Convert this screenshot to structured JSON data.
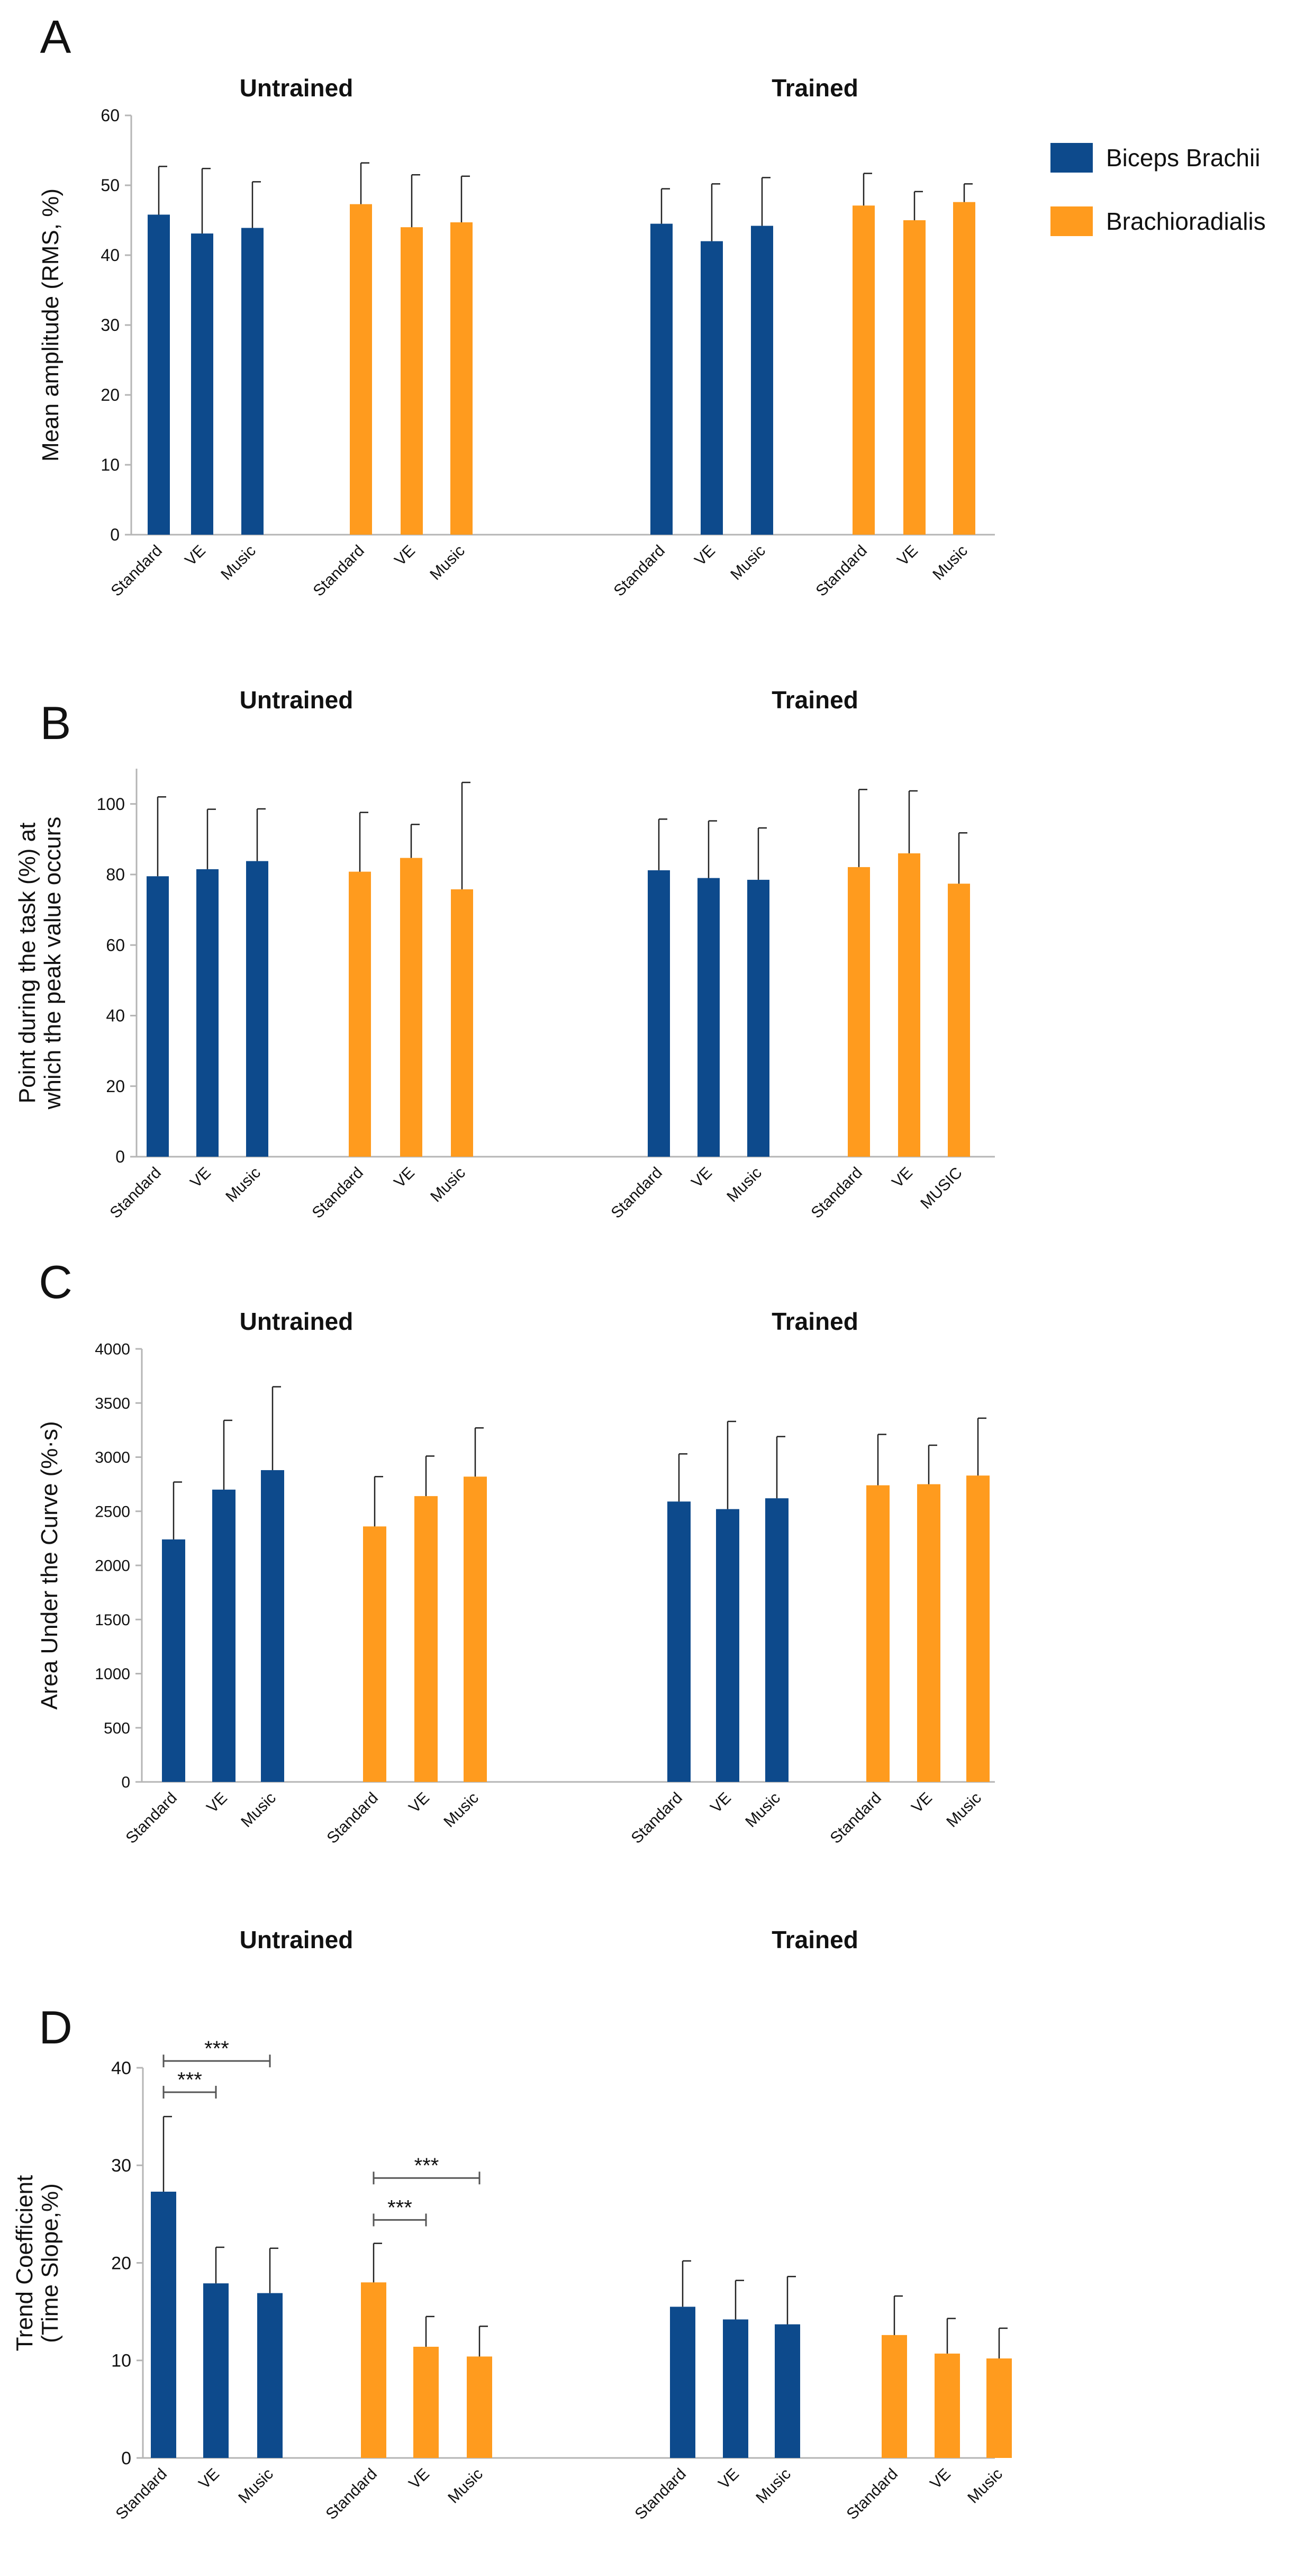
{
  "legend": {
    "items": [
      {
        "name": "Biceps Brachii",
        "color": "#0d4a8c"
      },
      {
        "name": "Brachioradialis",
        "color": "#ff9b1e"
      }
    ]
  },
  "chart_data": [
    {
      "panel": "A",
      "type": "bar",
      "ylabel": "Mean amplitude (RMS, %)",
      "ylim": [
        0,
        60
      ],
      "yticks": [
        0,
        10,
        20,
        30,
        40,
        50,
        60
      ],
      "groups": [
        {
          "title": "Untrained",
          "biceps": {
            "categories": [
              "Standard",
              "VE",
              "Music"
            ],
            "values": [
              45.8,
              43.1,
              43.9
            ],
            "errors": [
              6.9,
              9.3,
              6.6
            ]
          },
          "brachio": {
            "categories": [
              "Standard",
              "VE",
              "Music"
            ],
            "values": [
              47.3,
              44.0,
              44.7
            ],
            "errors": [
              5.9,
              7.5,
              6.6
            ]
          }
        },
        {
          "title": "Trained",
          "biceps": {
            "categories": [
              "Standard",
              "VE",
              "Music"
            ],
            "values": [
              44.5,
              42.0,
              44.2
            ],
            "errors": [
              5.0,
              8.2,
              6.9
            ]
          },
          "brachio": {
            "categories": [
              "Standard",
              "VE",
              "Music"
            ],
            "values": [
              47.1,
              45.0,
              47.6
            ],
            "errors": [
              4.6,
              4.1,
              2.6
            ]
          }
        }
      ],
      "significance": []
    },
    {
      "panel": "B",
      "type": "bar",
      "ylabel": "Point during the task (%) at which the peak value occurs",
      "ylabel_lines": [
        "Point during the task (%) at",
        "which the peak value occurs"
      ],
      "ylim": [
        0,
        110
      ],
      "yticks": [
        0,
        20,
        40,
        60,
        80,
        100
      ],
      "groups": [
        {
          "title": "Untrained",
          "biceps": {
            "categories": [
              "Standard",
              "VE",
              "Music"
            ],
            "values": [
              79.5,
              81.5,
              83.8
            ],
            "errors": [
              22.5,
              17.0,
              14.8
            ]
          },
          "brachio": {
            "categories": [
              "Standard",
              "VE",
              "Music"
            ],
            "values": [
              80.8,
              84.7,
              75.8
            ],
            "errors": [
              16.8,
              9.5,
              30.3
            ]
          }
        },
        {
          "title": "Trained",
          "biceps": {
            "categories": [
              "Standard",
              "VE",
              "Music"
            ],
            "values": [
              81.2,
              79.0,
              78.5
            ],
            "errors": [
              14.5,
              16.2,
              14.7
            ]
          },
          "brachio": {
            "categories": [
              "Standard",
              "VE",
              "MUSIC"
            ],
            "values": [
              82.1,
              86.0,
              77.4
            ],
            "errors": [
              22.0,
              17.7,
              14.4
            ]
          }
        }
      ],
      "significance": []
    },
    {
      "panel": "C",
      "type": "bar",
      "ylabel": "Area Under the Curve (%·s)",
      "ylim": [
        0,
        4000
      ],
      "yticks": [
        0,
        500,
        1000,
        1500,
        2000,
        2500,
        3000,
        3500,
        4000
      ],
      "groups": [
        {
          "title": "Untrained",
          "biceps": {
            "categories": [
              "Standard",
              "VE",
              "Music"
            ],
            "values": [
              2240,
              2700,
              2880
            ],
            "errors": [
              530,
              640,
              770
            ]
          },
          "brachio": {
            "categories": [
              "Standard",
              "VE",
              "Music"
            ],
            "values": [
              2360,
              2640,
              2820
            ],
            "errors": [
              460,
              370,
              450
            ]
          }
        },
        {
          "title": "Trained",
          "biceps": {
            "categories": [
              "Standard",
              "VE",
              "Music"
            ],
            "values": [
              2590,
              2520,
              2620
            ],
            "errors": [
              440,
              810,
              570
            ]
          },
          "brachio": {
            "categories": [
              "Standard",
              "VE",
              "Music"
            ],
            "values": [
              2740,
              2750,
              2830
            ],
            "errors": [
              470,
              360,
              530
            ]
          }
        }
      ],
      "significance": []
    },
    {
      "panel": "D",
      "type": "bar",
      "ylabel": "Trend Coefficient (Time Slope,%)",
      "ylabel_lines": [
        "Trend Coefficient",
        "(Time Slope,%)"
      ],
      "ylim": [
        0,
        40
      ],
      "yticks": [
        0,
        10,
        20,
        30,
        40
      ],
      "groups": [
        {
          "title": "Untrained",
          "biceps": {
            "categories": [
              "Standard",
              "VE",
              "Music"
            ],
            "values": [
              27.3,
              17.9,
              16.9
            ],
            "errors": [
              7.7,
              3.7,
              4.6
            ]
          },
          "brachio": {
            "categories": [
              "Standard",
              "VE",
              "Music"
            ],
            "values": [
              18.0,
              11.4,
              10.4
            ],
            "errors": [
              4.0,
              3.1,
              3.1
            ]
          }
        },
        {
          "title": "Trained",
          "biceps": {
            "categories": [
              "Standard",
              "VE",
              "Music"
            ],
            "values": [
              15.5,
              14.2,
              13.7
            ],
            "errors": [
              4.7,
              4.0,
              4.9
            ]
          },
          "brachio": {
            "categories": [
              "Standard",
              "VE",
              "Music"
            ],
            "values": [
              12.6,
              10.7,
              10.2
            ],
            "errors": [
              4.0,
              3.6,
              3.1
            ]
          }
        }
      ],
      "significance": [
        {
          "group": 0,
          "muscle": "biceps",
          "from": 0,
          "to": 1,
          "label": "***",
          "level": 37.5
        },
        {
          "group": 0,
          "muscle": "biceps",
          "from": 0,
          "to": 2,
          "label": "***",
          "level": 40.7
        },
        {
          "group": 0,
          "muscle": "brachio",
          "from": 0,
          "to": 1,
          "label": "***",
          "level": 24.4
        },
        {
          "group": 0,
          "muscle": "brachio",
          "from": 0,
          "to": 2,
          "label": "***",
          "level": 28.7
        }
      ]
    }
  ]
}
